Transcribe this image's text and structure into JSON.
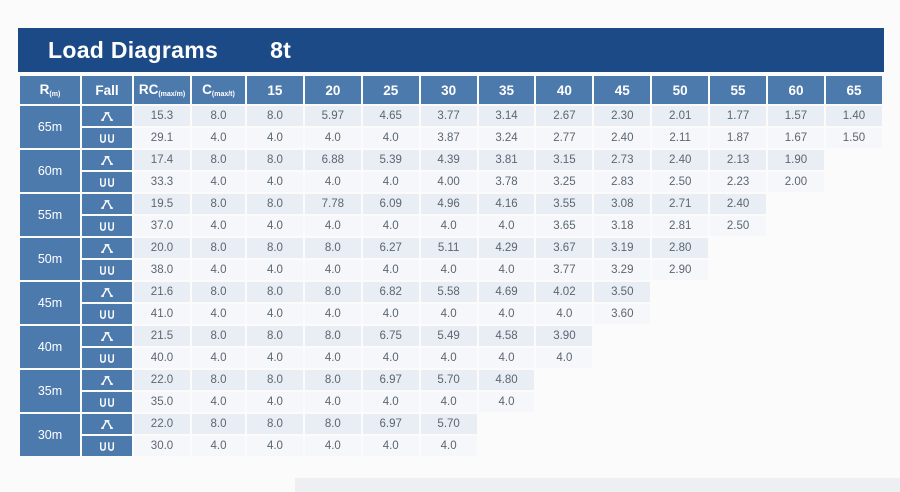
{
  "title": {
    "text": "Load Diagrams",
    "model": "8t"
  },
  "columns": {
    "radius": {
      "label": "R",
      "sub": "(m)"
    },
    "fall": {
      "label": "Fall"
    },
    "rc": {
      "label": "RC",
      "sub": "(max/m)"
    },
    "c": {
      "label": "C",
      "sub": "(max/t)"
    },
    "jib_lengths": [
      "15",
      "20",
      "25",
      "30",
      "35",
      "40",
      "45",
      "50",
      "55",
      "60",
      "65"
    ]
  },
  "fall_icons": {
    "row1": "two-fall-icon",
    "row2": "four-fall-icon"
  },
  "colors": {
    "navy": "#1c4a87",
    "steel_blue": "#4d7aad",
    "row_a_bg": "#e9edf4",
    "row_b_bg": "#f5f7fa",
    "data_text": "#5b6672"
  },
  "chart_data": {
    "type": "table",
    "title": "Load Diagrams 8t",
    "row_groups": [
      {
        "radius": "65m",
        "rows": [
          {
            "fall": "two-fall",
            "rc": "15.3",
            "c": "8.0",
            "values": [
              "8.0",
              "5.97",
              "4.65",
              "3.77",
              "3.14",
              "2.67",
              "2.30",
              "2.01",
              "1.77",
              "1.57",
              "1.40"
            ]
          },
          {
            "fall": "four-fall",
            "rc": "29.1",
            "c": "4.0",
            "values": [
              "4.0",
              "4.0",
              "4.0",
              "3.87",
              "3.24",
              "2.77",
              "2.40",
              "2.11",
              "1.87",
              "1.67",
              "1.50"
            ]
          }
        ]
      },
      {
        "radius": "60m",
        "rows": [
          {
            "fall": "two-fall",
            "rc": "17.4",
            "c": "8.0",
            "values": [
              "8.0",
              "6.88",
              "5.39",
              "4.39",
              "3.81",
              "3.15",
              "2.73",
              "2.40",
              "2.13",
              "1.90"
            ]
          },
          {
            "fall": "four-fall",
            "rc": "33.3",
            "c": "4.0",
            "values": [
              "4.0",
              "4.0",
              "4.0",
              "4.00",
              "3.78",
              "3.25",
              "2.83",
              "2.50",
              "2.23",
              "2.00"
            ]
          }
        ]
      },
      {
        "radius": "55m",
        "rows": [
          {
            "fall": "two-fall",
            "rc": "19.5",
            "c": "8.0",
            "values": [
              "8.0",
              "7.78",
              "6.09",
              "4.96",
              "4.16",
              "3.55",
              "3.08",
              "2.71",
              "2.40"
            ]
          },
          {
            "fall": "four-fall",
            "rc": "37.0",
            "c": "4.0",
            "values": [
              "4.0",
              "4.0",
              "4.0",
              "4.0",
              "4.0",
              "3.65",
              "3.18",
              "2.81",
              "2.50"
            ]
          }
        ]
      },
      {
        "radius": "50m",
        "rows": [
          {
            "fall": "two-fall",
            "rc": "20.0",
            "c": "8.0",
            "values": [
              "8.0",
              "8.0",
              "6.27",
              "5.11",
              "4.29",
              "3.67",
              "3.19",
              "2.80"
            ]
          },
          {
            "fall": "four-fall",
            "rc": "38.0",
            "c": "4.0",
            "values": [
              "4.0",
              "4.0",
              "4.0",
              "4.0",
              "4.0",
              "3.77",
              "3.29",
              "2.90"
            ]
          }
        ]
      },
      {
        "radius": "45m",
        "rows": [
          {
            "fall": "two-fall",
            "rc": "21.6",
            "c": "8.0",
            "values": [
              "8.0",
              "8.0",
              "6.82",
              "5.58",
              "4.69",
              "4.02",
              "3.50"
            ]
          },
          {
            "fall": "four-fall",
            "rc": "41.0",
            "c": "4.0",
            "values": [
              "4.0",
              "4.0",
              "4.0",
              "4.0",
              "4.0",
              "4.0",
              "3.60"
            ]
          }
        ]
      },
      {
        "radius": "40m",
        "rows": [
          {
            "fall": "two-fall",
            "rc": "21.5",
            "c": "8.0",
            "values": [
              "8.0",
              "8.0",
              "6.75",
              "5.49",
              "4.58",
              "3.90"
            ]
          },
          {
            "fall": "four-fall",
            "rc": "40.0",
            "c": "4.0",
            "values": [
              "4.0",
              "4.0",
              "4.0",
              "4.0",
              "4.0",
              "4.0"
            ]
          }
        ]
      },
      {
        "radius": "35m",
        "rows": [
          {
            "fall": "two-fall",
            "rc": "22.0",
            "c": "8.0",
            "values": [
              "8.0",
              "8.0",
              "6.97",
              "5.70",
              "4.80"
            ]
          },
          {
            "fall": "four-fall",
            "rc": "35.0",
            "c": "4.0",
            "values": [
              "4.0",
              "4.0",
              "4.0",
              "4.0",
              "4.0"
            ]
          }
        ]
      },
      {
        "radius": "30m",
        "rows": [
          {
            "fall": "two-fall",
            "rc": "22.0",
            "c": "8.0",
            "values": [
              "8.0",
              "8.0",
              "6.97",
              "5.70"
            ]
          },
          {
            "fall": "four-fall",
            "rc": "30.0",
            "c": "4.0",
            "values": [
              "4.0",
              "4.0",
              "4.0",
              "4.0"
            ]
          }
        ]
      }
    ]
  }
}
